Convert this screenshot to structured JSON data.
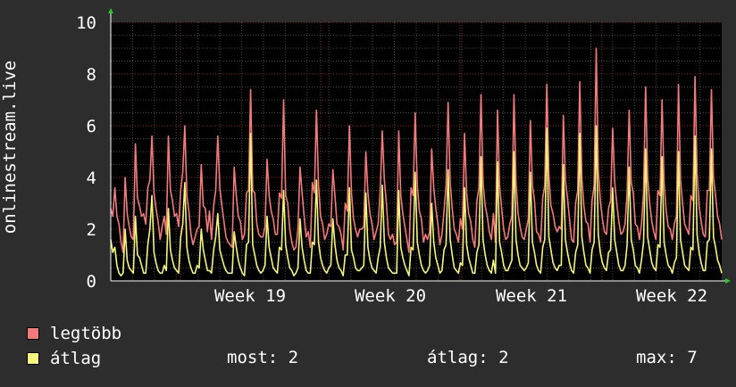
{
  "chart_data": {
    "type": "line",
    "ylabel": "onlinestream.live",
    "ylim": [
      0,
      10
    ],
    "yticks": [
      0,
      2,
      4,
      6,
      8,
      10
    ],
    "xticks": [
      "Week 19",
      "Week 20",
      "Week 21",
      "Week 22"
    ],
    "grid": true,
    "legend_placement": "bottom-left",
    "series": [
      {
        "name": "legtöbb",
        "color": "#f27a7a",
        "values": [
          2.8,
          2.5,
          3.6,
          2.5,
          2.2,
          1.5,
          1.1,
          4.0,
          2.6,
          2.1,
          1.7,
          1.6,
          5.3,
          3.2,
          2.9,
          2.5,
          2.6,
          2.2,
          3.6,
          3.9,
          5.6,
          3.4,
          2.8,
          2.3,
          1.6,
          2.1,
          2.5,
          1.8,
          5.6,
          3.5,
          3.1,
          2.5,
          2.6,
          2.1,
          3.5,
          4.2,
          6.0,
          3.3,
          2.7,
          1.8,
          1.4,
          1.7,
          2.0,
          2.1,
          4.5,
          2.9,
          2.8,
          1.9,
          2.7,
          1.6,
          2.9,
          3.5,
          5.6,
          3.6,
          2.9,
          2.3,
          1.7,
          1.5,
          1.4,
          1.3,
          4.4,
          3.3,
          2.5,
          2.3,
          1.6,
          1.8,
          3.4,
          3.5,
          7.4,
          3.5,
          3.4,
          2.2,
          1.8,
          1.7,
          1.7,
          2.1,
          4.7,
          3.3,
          2.7,
          2.4,
          1.8,
          1.8,
          3.4,
          3.2,
          7.0,
          3.3,
          3.0,
          2.0,
          1.5,
          1.2,
          1.3,
          2.0,
          4.4,
          3.4,
          2.5,
          1.7,
          1.9,
          1.3,
          3.8,
          3.4,
          6.6,
          3.7,
          2.5,
          2.2,
          1.6,
          1.8,
          2.2,
          2.1,
          4.3,
          3.3,
          2.2,
          2.1,
          1.8,
          1.2,
          3.0,
          2.7,
          6.0,
          3.4,
          2.4,
          2.0,
          1.7,
          2.0,
          2.0,
          2.1,
          5.0,
          3.4,
          2.6,
          2.2,
          1.6,
          1.9,
          2.2,
          3.5,
          5.8,
          3.9,
          3.0,
          1.8,
          1.6,
          1.8,
          1.4,
          1.5,
          5.8,
          3.3,
          2.6,
          2.1,
          1.6,
          1.1,
          3.6,
          3.3,
          6.5,
          3.7,
          2.7,
          2.4,
          1.5,
          1.8,
          1.6,
          1.9,
          5.1,
          3.6,
          2.8,
          2.2,
          1.4,
          1.8,
          2.7,
          3.7,
          6.9,
          3.8,
          2.8,
          2.0,
          1.8,
          1.5,
          2.4,
          2.0,
          5.7,
          3.4,
          2.6,
          2.3,
          1.6,
          1.3,
          3.1,
          3.6,
          7.2,
          3.8,
          2.9,
          2.5,
          1.9,
          1.6,
          2.6,
          1.5,
          6.6,
          3.7,
          2.8,
          2.0,
          1.6,
          1.7,
          2.2,
          2.5,
          7.2,
          3.8,
          2.6,
          2.1,
          1.7,
          1.6,
          2.0,
          2.4,
          6.2,
          3.7,
          3.1,
          1.9,
          1.8,
          1.5,
          3.2,
          3.7,
          7.6,
          4.1,
          2.9,
          2.6,
          2.1,
          1.9,
          2.1,
          2.0,
          6.4,
          3.9,
          3.2,
          2.4,
          1.6,
          1.5,
          3.0,
          3.5,
          7.7,
          4.0,
          2.9,
          2.3,
          2.2,
          1.5,
          3.1,
          3.7,
          9.0,
          4.3,
          3.1,
          2.4,
          1.9,
          1.8,
          2.8,
          3.1,
          5.9,
          3.8,
          3.0,
          2.3,
          1.8,
          1.9,
          2.2,
          3.4,
          6.6,
          3.8,
          3.4,
          2.2,
          2.1,
          1.6,
          2.2,
          3.4,
          7.5,
          4.0,
          3.0,
          2.3,
          1.9,
          1.6,
          3.5,
          3.3,
          7.0,
          3.8,
          2.7,
          2.1,
          2.0,
          1.6,
          2.2,
          2.5,
          7.6,
          3.9,
          3.0,
          2.2,
          2.0,
          1.8,
          3.3,
          3.1,
          7.9,
          4.2,
          2.9,
          2.3,
          1.8,
          1.7,
          3.5,
          3.5,
          7.4,
          4.0,
          3.3,
          2.5,
          2.2,
          1.6
        ]
      },
      {
        "name": "átlag",
        "color": "#f5f57a",
        "values": [
          1.6,
          1.1,
          1.3,
          0.6,
          0.3,
          0.2,
          0.3,
          2.0,
          0.8,
          0.5,
          0.4,
          0.3,
          2.5,
          1.0,
          0.9,
          0.6,
          0.3,
          0.3,
          1.4,
          2.0,
          3.3,
          1.1,
          0.7,
          0.4,
          0.3,
          0.3,
          0.6,
          0.4,
          2.8,
          1.2,
          0.8,
          0.5,
          0.4,
          0.3,
          1.7,
          2.2,
          3.8,
          1.3,
          0.8,
          0.5,
          0.3,
          0.3,
          0.6,
          0.5,
          2.0,
          1.2,
          0.8,
          0.4,
          0.4,
          0.3,
          1.2,
          1.7,
          2.6,
          1.2,
          0.9,
          0.6,
          0.4,
          0.3,
          0.3,
          0.3,
          1.9,
          1.3,
          0.8,
          0.5,
          0.3,
          0.2,
          1.4,
          1.5,
          5.7,
          1.4,
          1.0,
          0.6,
          0.4,
          0.3,
          0.4,
          0.6,
          2.5,
          1.3,
          0.9,
          0.5,
          0.4,
          0.3,
          1.3,
          1.2,
          3.5,
          1.4,
          0.9,
          0.5,
          0.4,
          0.2,
          0.3,
          0.5,
          2.4,
          1.3,
          0.8,
          0.4,
          0.3,
          0.3,
          1.5,
          1.4,
          3.9,
          1.5,
          0.9,
          0.6,
          0.4,
          0.3,
          0.5,
          0.6,
          2.4,
          1.4,
          0.8,
          0.5,
          0.4,
          0.2,
          1.0,
          1.0,
          3.6,
          1.2,
          0.9,
          0.5,
          0.4,
          0.4,
          0.5,
          0.6,
          3.4,
          1.3,
          0.8,
          0.5,
          0.4,
          0.3,
          0.9,
          1.3,
          3.7,
          1.5,
          0.9,
          0.5,
          0.4,
          0.3,
          0.3,
          0.3,
          3.5,
          1.3,
          0.9,
          0.6,
          0.4,
          0.2,
          1.3,
          1.2,
          4.2,
          1.5,
          1.0,
          0.6,
          0.4,
          0.3,
          0.4,
          0.6,
          3.0,
          1.5,
          0.9,
          0.6,
          0.3,
          0.4,
          1.2,
          1.4,
          4.3,
          1.6,
          1.0,
          0.5,
          0.4,
          0.3,
          0.7,
          0.6,
          3.6,
          1.4,
          0.9,
          0.6,
          0.3,
          0.3,
          1.1,
          1.4,
          4.8,
          1.6,
          1.0,
          0.6,
          0.4,
          0.3,
          0.8,
          0.3,
          4.6,
          1.5,
          1.1,
          0.6,
          0.4,
          0.4,
          0.6,
          0.8,
          5.0,
          1.6,
          1.0,
          0.6,
          0.5,
          0.4,
          0.5,
          0.7,
          4.2,
          1.5,
          1.1,
          0.6,
          0.4,
          0.3,
          1.3,
          1.6,
          5.9,
          1.7,
          1.2,
          0.7,
          0.5,
          0.4,
          0.6,
          0.6,
          4.5,
          1.6,
          1.1,
          0.7,
          0.4,
          0.3,
          1.1,
          1.4,
          5.7,
          1.7,
          1.1,
          0.6,
          0.5,
          0.3,
          1.2,
          1.5,
          6.0,
          1.8,
          1.1,
          0.7,
          0.5,
          0.4,
          1.1,
          1.2,
          3.6,
          1.6,
          1.1,
          0.6,
          0.4,
          0.4,
          0.6,
          1.4,
          4.4,
          1.6,
          1.2,
          0.6,
          0.5,
          0.3,
          0.8,
          1.5,
          5.1,
          1.7,
          1.2,
          0.7,
          0.5,
          0.4,
          1.4,
          1.3,
          4.8,
          1.5,
          1.0,
          0.6,
          0.5,
          0.3,
          0.7,
          0.9,
          5.0,
          1.6,
          1.1,
          0.6,
          0.5,
          0.4,
          1.3,
          1.2,
          5.6,
          1.8,
          1.1,
          0.7,
          0.4,
          0.4,
          1.5,
          1.6,
          5.1,
          1.7,
          1.3,
          0.8,
          0.6,
          0.3
        ]
      }
    ]
  },
  "legend": [
    {
      "label": "legtöbb",
      "color": "#f27a7a"
    },
    {
      "label": "átlag",
      "color": "#f5f57a"
    }
  ],
  "stats": {
    "most": "most: 2",
    "atlag": "átlag: 2",
    "max": "max: 7"
  }
}
